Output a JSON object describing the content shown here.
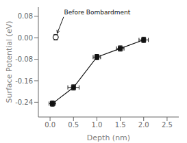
{
  "chart_data": {
    "type": "line",
    "title": "",
    "xlabel": "Depth (nm)",
    "ylabel": "Surface Potential (eV)",
    "xlim": [
      -0.25,
      2.75
    ],
    "ylim": [
      -0.295,
      0.115
    ],
    "xticks": [
      {
        "value": 0,
        "label": "0.0"
      },
      0.5,
      {
        "value": 1,
        "label": "1.0"
      },
      1.5,
      {
        "value": 2,
        "label": "2.0"
      },
      2.5
    ],
    "yticks": [
      0.08,
      {
        "value": 0,
        "label": "0.00"
      },
      -0.08,
      -0.16,
      -0.24
    ],
    "series": [
      {
        "type": "line",
        "marker": "square",
        "line_style": "solid",
        "color": "#111111",
        "x": [
          0.05,
          0.5,
          1.0,
          1.5,
          2.0
        ],
        "values": [
          -0.245,
          -0.185,
          -0.072,
          -0.04,
          -0.008
        ],
        "x_err": [
          0.07,
          0.12,
          0.08,
          0.08,
          0.1
        ],
        "y_err": [
          0.01,
          0.01,
          0.01,
          0.01,
          0.01
        ]
      },
      {
        "type": "scatter",
        "marker": "open_circle",
        "color": "#111111",
        "x": [
          0.12
        ],
        "values": [
          0.002
        ],
        "x_err": [
          0.03
        ],
        "y_err": [
          0.01
        ]
      }
    ],
    "annotations": [
      {
        "text": "Before Bombardment",
        "x": 0.3,
        "y": 0.082,
        "target_x": 0.12,
        "target_y": 0.002
      }
    ]
  }
}
